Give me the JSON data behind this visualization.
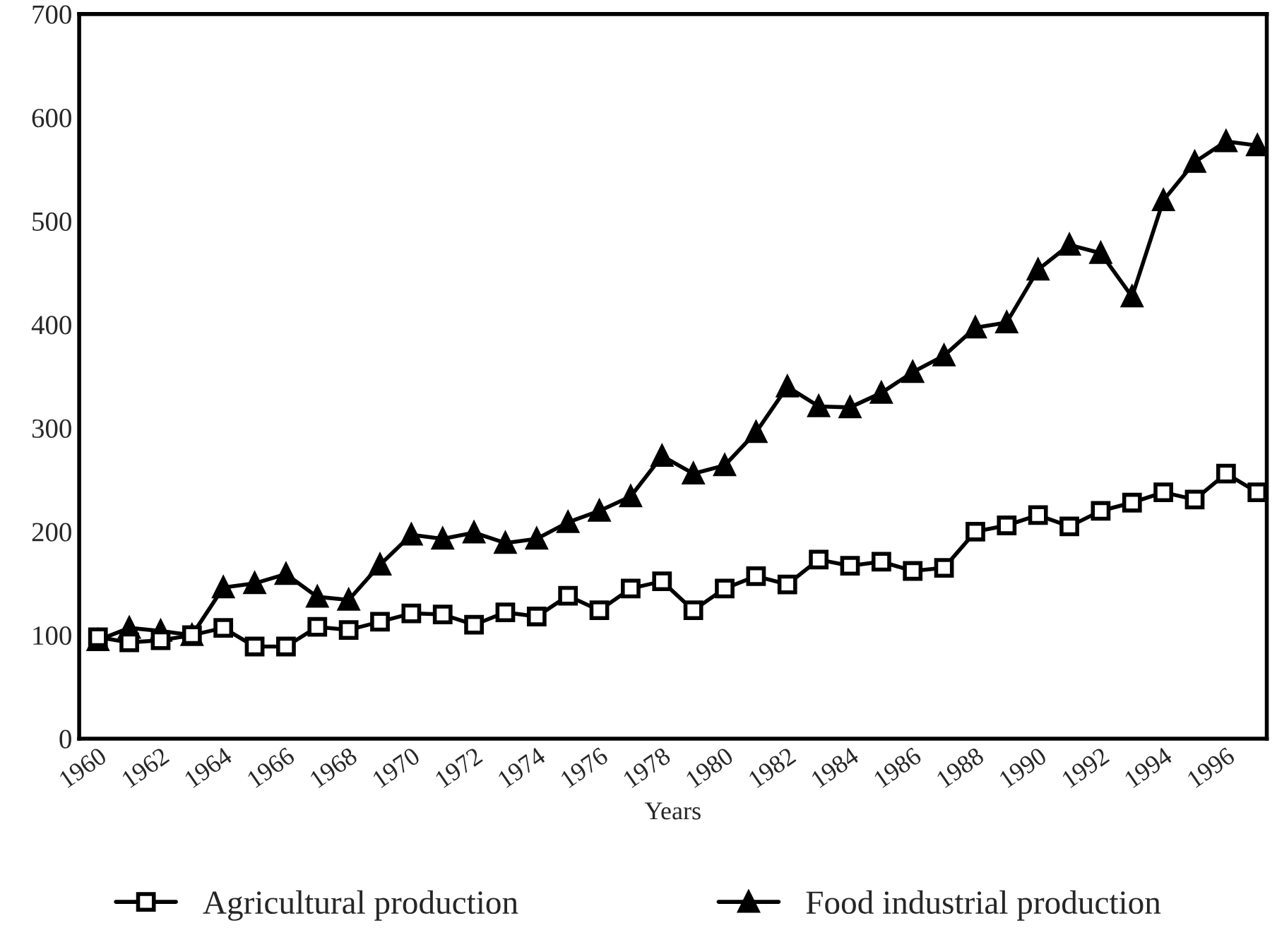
{
  "chart_data": {
    "type": "line",
    "xlabel": "Years",
    "categories": [
      "1960",
      null,
      "1962",
      null,
      "1964",
      null,
      "1966",
      null,
      "1968",
      null,
      "1970",
      null,
      "1972",
      null,
      "1974",
      null,
      "1976",
      null,
      "1978",
      null,
      "1980",
      null,
      "1982",
      null,
      "1984",
      null,
      "1986",
      null,
      "1988",
      null,
      "1990",
      null,
      "1992",
      null,
      "1994",
      null,
      "1996",
      null
    ],
    "series": [
      {
        "name": "Agricultural production",
        "color": "#000000",
        "marker": "square",
        "values": [
          98,
          93,
          95,
          100,
          107,
          89,
          89,
          108,
          105,
          113,
          121,
          120,
          110,
          122,
          118,
          138,
          124,
          145,
          152,
          124,
          145,
          157,
          149,
          173,
          167,
          171,
          162,
          165,
          200,
          206,
          216,
          205,
          220,
          228,
          238,
          231,
          256,
          238
        ]
      },
      {
        "name": "Food industrial production",
        "color": "#000000",
        "marker": "triangle",
        "values": [
          95,
          107,
          104,
          100,
          146,
          150,
          159,
          137,
          134,
          168,
          197,
          193,
          199,
          189,
          193,
          209,
          220,
          234,
          273,
          256,
          264,
          296,
          340,
          321,
          320,
          334,
          354,
          370,
          397,
          402,
          453,
          477,
          469,
          427,
          520,
          557,
          577,
          573
        ]
      }
    ],
    "ylim": [
      0,
      700
    ],
    "yticks": [
      0,
      100,
      200,
      300,
      400,
      500,
      600,
      700
    ],
    "grid": false,
    "legend": "bottom",
    "line_style": "solid"
  }
}
